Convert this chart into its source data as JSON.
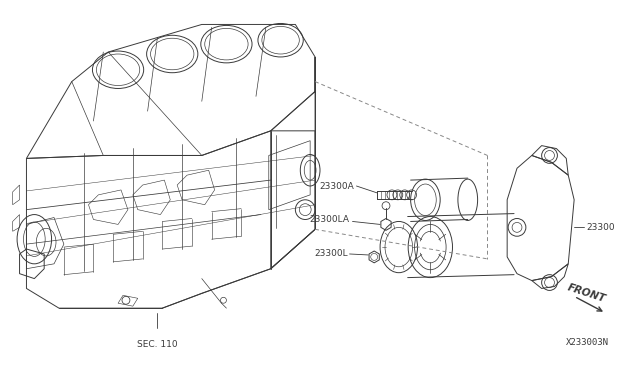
{
  "background_color": "#ffffff",
  "line_color": "#3a3a3a",
  "text_color": "#3a3a3a",
  "dash_color": "#888888",
  "fig_width": 6.4,
  "fig_height": 3.72,
  "dpi": 100,
  "labels": {
    "sec110": "SEC. 110",
    "part_23300A": "23300A",
    "part_23300LA": "23300LA",
    "part_23300L": "23300L",
    "part_23300": "23300",
    "front": "FRONT",
    "diagram_id": "X233003N"
  }
}
